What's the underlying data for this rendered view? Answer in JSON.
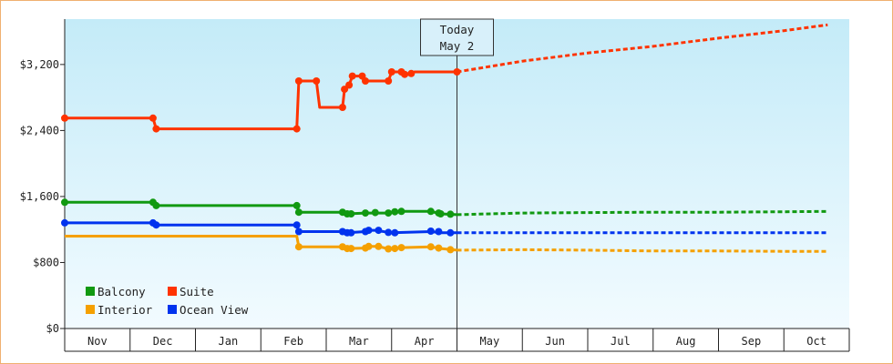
{
  "chart_data": {
    "type": "line",
    "x_axis": {
      "categories": [
        "Nov",
        "Dec",
        "Jan",
        "Feb",
        "Mar",
        "Apr",
        "May",
        "Jun",
        "Jul",
        "Aug",
        "Sep",
        "Oct"
      ]
    },
    "y_axis": {
      "ticks": [
        {
          "value": 0,
          "label": "$0"
        },
        {
          "value": 800,
          "label": "$800"
        },
        {
          "value": 1600,
          "label": "$1,600"
        },
        {
          "value": 2400,
          "label": "$2,400"
        },
        {
          "value": 3200,
          "label": "$3,200"
        }
      ],
      "ylim": [
        0,
        3750
      ]
    },
    "today_marker": {
      "line1": "Today",
      "line2": "May 2",
      "x": 6.0
    },
    "legend": [
      {
        "label": "Balcony",
        "series": "balcony"
      },
      {
        "label": "Suite",
        "series": "suite"
      },
      {
        "label": "Interior",
        "series": "interior"
      },
      {
        "label": "Ocean View",
        "series": "ocean"
      }
    ],
    "series": [
      {
        "id": "suite",
        "color": "#ff3300",
        "name": "Suite",
        "history": [
          [
            0.0,
            2550
          ],
          [
            1.35,
            2550
          ],
          [
            1.4,
            2420
          ],
          [
            3.55,
            2420
          ],
          [
            3.58,
            3000
          ],
          [
            3.85,
            3000
          ],
          [
            3.9,
            2680
          ],
          [
            4.25,
            2680
          ],
          [
            4.28,
            2900
          ],
          [
            4.35,
            2950
          ],
          [
            4.4,
            3060
          ],
          [
            4.55,
            3060
          ],
          [
            4.6,
            3000
          ],
          [
            4.95,
            3000
          ],
          [
            5.0,
            3110
          ],
          [
            5.15,
            3110
          ],
          [
            5.2,
            3080
          ],
          [
            5.3,
            3090
          ],
          [
            5.35,
            3110
          ],
          [
            6.0,
            3110
          ]
        ],
        "markers": [
          [
            0.0,
            2550
          ],
          [
            1.35,
            2550
          ],
          [
            1.4,
            2420
          ],
          [
            3.55,
            2420
          ],
          [
            3.58,
            3000
          ],
          [
            3.85,
            3000
          ],
          [
            4.25,
            2680
          ],
          [
            4.28,
            2900
          ],
          [
            4.35,
            2950
          ],
          [
            4.4,
            3060
          ],
          [
            4.55,
            3060
          ],
          [
            4.6,
            3000
          ],
          [
            4.95,
            3000
          ],
          [
            5.0,
            3110
          ],
          [
            5.15,
            3110
          ],
          [
            5.2,
            3080
          ],
          [
            5.3,
            3090
          ],
          [
            6.0,
            3110
          ]
        ],
        "forecast": [
          [
            6.0,
            3110
          ],
          [
            7.0,
            3240
          ],
          [
            8.0,
            3340
          ],
          [
            9.0,
            3420
          ],
          [
            10.0,
            3520
          ],
          [
            11.0,
            3610
          ],
          [
            11.67,
            3680
          ]
        ]
      },
      {
        "id": "balcony",
        "color": "#119911",
        "name": "Balcony",
        "history": [
          [
            0.0,
            1530
          ],
          [
            1.35,
            1530
          ],
          [
            1.4,
            1490
          ],
          [
            3.55,
            1490
          ],
          [
            3.58,
            1410
          ],
          [
            4.25,
            1410
          ],
          [
            4.32,
            1390
          ],
          [
            4.6,
            1400
          ],
          [
            4.95,
            1400
          ],
          [
            5.0,
            1410
          ],
          [
            5.15,
            1420
          ],
          [
            5.6,
            1420
          ],
          [
            5.75,
            1390
          ],
          [
            6.0,
            1380
          ]
        ],
        "markers": [
          [
            0.0,
            1530
          ],
          [
            1.35,
            1530
          ],
          [
            1.4,
            1490
          ],
          [
            3.55,
            1490
          ],
          [
            3.58,
            1410
          ],
          [
            4.25,
            1410
          ],
          [
            4.32,
            1390
          ],
          [
            4.38,
            1390
          ],
          [
            4.6,
            1400
          ],
          [
            4.75,
            1405
          ],
          [
            4.95,
            1400
          ],
          [
            5.05,
            1415
          ],
          [
            5.15,
            1420
          ],
          [
            5.6,
            1420
          ],
          [
            5.72,
            1400
          ],
          [
            5.75,
            1390
          ],
          [
            5.9,
            1385
          ]
        ],
        "forecast": [
          [
            6.0,
            1380
          ],
          [
            7.0,
            1400
          ],
          [
            8.0,
            1405
          ],
          [
            9.0,
            1410
          ],
          [
            10.0,
            1410
          ],
          [
            11.0,
            1415
          ],
          [
            11.67,
            1420
          ]
        ]
      },
      {
        "id": "ocean",
        "color": "#0033ee",
        "name": "Ocean View",
        "history": [
          [
            0.0,
            1280
          ],
          [
            1.35,
            1280
          ],
          [
            1.4,
            1255
          ],
          [
            3.55,
            1255
          ],
          [
            3.58,
            1175
          ],
          [
            4.25,
            1175
          ],
          [
            4.32,
            1160
          ],
          [
            4.6,
            1175
          ],
          [
            4.65,
            1190
          ],
          [
            4.75,
            1190
          ],
          [
            5.0,
            1160
          ],
          [
            5.6,
            1175
          ],
          [
            5.75,
            1160
          ],
          [
            6.0,
            1160
          ]
        ],
        "markers": [
          [
            0.0,
            1280
          ],
          [
            1.35,
            1280
          ],
          [
            1.4,
            1255
          ],
          [
            3.55,
            1255
          ],
          [
            3.58,
            1175
          ],
          [
            4.25,
            1175
          ],
          [
            4.32,
            1160
          ],
          [
            4.38,
            1160
          ],
          [
            4.6,
            1175
          ],
          [
            4.65,
            1190
          ],
          [
            4.8,
            1190
          ],
          [
            4.95,
            1165
          ],
          [
            5.05,
            1160
          ],
          [
            5.6,
            1180
          ],
          [
            5.72,
            1175
          ],
          [
            5.9,
            1160
          ]
        ],
        "forecast": [
          [
            6.0,
            1160
          ],
          [
            7.0,
            1160
          ],
          [
            8.0,
            1160
          ],
          [
            9.0,
            1160
          ],
          [
            10.0,
            1160
          ],
          [
            11.0,
            1160
          ],
          [
            11.67,
            1160
          ]
        ]
      },
      {
        "id": "interior",
        "color": "#f5a000",
        "name": "Interior",
        "history": [
          [
            0.0,
            1120
          ],
          [
            3.55,
            1120
          ],
          [
            3.58,
            990
          ],
          [
            4.25,
            990
          ],
          [
            4.32,
            970
          ],
          [
            4.6,
            975
          ],
          [
            4.65,
            995
          ],
          [
            4.8,
            995
          ],
          [
            4.95,
            965
          ],
          [
            5.15,
            980
          ],
          [
            5.6,
            990
          ],
          [
            5.75,
            970
          ],
          [
            6.0,
            950
          ]
        ],
        "markers": [
          [
            3.58,
            990
          ],
          [
            4.25,
            990
          ],
          [
            4.32,
            970
          ],
          [
            4.38,
            970
          ],
          [
            4.6,
            975
          ],
          [
            4.65,
            995
          ],
          [
            4.8,
            995
          ],
          [
            4.95,
            965
          ],
          [
            5.05,
            970
          ],
          [
            5.15,
            980
          ],
          [
            5.6,
            990
          ],
          [
            5.72,
            975
          ],
          [
            5.9,
            955
          ]
        ],
        "forecast": [
          [
            6.0,
            950
          ],
          [
            7.0,
            955
          ],
          [
            8.0,
            950
          ],
          [
            9.0,
            940
          ],
          [
            10.0,
            940
          ],
          [
            11.0,
            935
          ],
          [
            11.67,
            935
          ]
        ]
      }
    ]
  }
}
